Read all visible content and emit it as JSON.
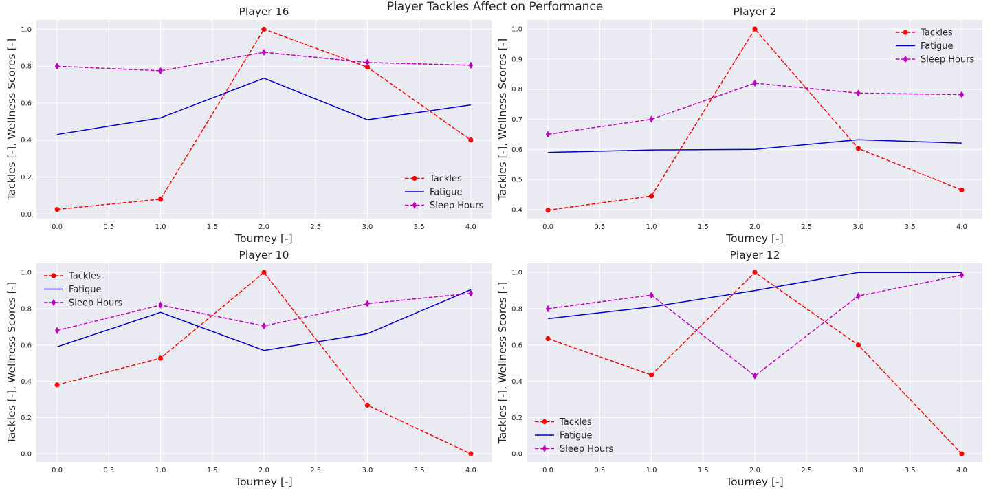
{
  "figure": {
    "title": "Player Tackles Affect on Performance",
    "style": {
      "axes_facecolor": "#eaeaf2",
      "grid_color": "#ffffff"
    }
  },
  "chart_data": [
    {
      "type": "line",
      "title": "Player 16",
      "xlabel": "Tourney [-]",
      "ylabel": "Tackles [-], Wellness Scores [-]",
      "xlim": [
        -0.2,
        4.2
      ],
      "ylim": [
        -0.025,
        1.05
      ],
      "xticks": [
        "0.0",
        "0.5",
        "1.0",
        "1.5",
        "2.0",
        "2.5",
        "3.0",
        "3.5",
        "4.0"
      ],
      "yticks": [
        "0.0",
        "0.2",
        "0.4",
        "0.6",
        "0.8",
        "1.0"
      ],
      "grid": true,
      "legend_position": "lower-right",
      "x": [
        0,
        1,
        2,
        3,
        4
      ],
      "series": [
        {
          "name": "Tackles",
          "values": [
            0.025,
            0.08,
            1.0,
            0.795,
            0.4
          ],
          "color": "#ff0000",
          "linestyle": "dashed",
          "marker": "circle"
        },
        {
          "name": "Fatigue",
          "values": [
            0.43,
            0.52,
            0.735,
            0.51,
            0.59
          ],
          "color": "#0000cc",
          "linestyle": "solid",
          "marker": "none"
        },
        {
          "name": "Sleep Hours",
          "values": [
            0.8,
            0.775,
            0.875,
            0.82,
            0.805
          ],
          "color": "#c000c0",
          "linestyle": "dashed",
          "marker": "diamond"
        }
      ]
    },
    {
      "type": "line",
      "title": "Player 2",
      "xlabel": "Tourney [-]",
      "ylabel": "Tackles [-], Wellness Scores [-]",
      "xlim": [
        -0.2,
        4.2
      ],
      "ylim": [
        0.37,
        1.03
      ],
      "xticks": [
        "0.0",
        "0.5",
        "1.0",
        "1.5",
        "2.0",
        "2.5",
        "3.0",
        "3.5",
        "4.0"
      ],
      "yticks": [
        "0.4",
        "0.5",
        "0.6",
        "0.7",
        "0.8",
        "0.9",
        "1.0"
      ],
      "grid": true,
      "legend_position": "upper-right",
      "x": [
        0,
        1,
        2,
        3,
        4
      ],
      "series": [
        {
          "name": "Tackles",
          "values": [
            0.398,
            0.445,
            1.0,
            0.603,
            0.465
          ],
          "color": "#ff0000",
          "linestyle": "dashed",
          "marker": "circle"
        },
        {
          "name": "Fatigue",
          "values": [
            0.59,
            0.598,
            0.6,
            0.632,
            0.621
          ],
          "color": "#0000cc",
          "linestyle": "solid",
          "marker": "none"
        },
        {
          "name": "Sleep Hours",
          "values": [
            0.65,
            0.7,
            0.82,
            0.787,
            0.782
          ],
          "color": "#c000c0",
          "linestyle": "dashed",
          "marker": "diamond"
        }
      ]
    },
    {
      "type": "line",
      "title": "Player 10",
      "xlabel": "Tourney [-]",
      "ylabel": "Tackles [-], Wellness Scores [-]",
      "xlim": [
        -0.2,
        4.2
      ],
      "ylim": [
        -0.045,
        1.05
      ],
      "xticks": [
        "0.0",
        "0.5",
        "1.0",
        "1.5",
        "2.0",
        "2.5",
        "3.0",
        "3.5",
        "4.0"
      ],
      "yticks": [
        "0.0",
        "0.2",
        "0.4",
        "0.6",
        "0.8",
        "1.0"
      ],
      "grid": true,
      "legend_position": "upper-left",
      "x": [
        0,
        1,
        2,
        3,
        4
      ],
      "series": [
        {
          "name": "Tackles",
          "values": [
            0.38,
            0.527,
            1.0,
            0.268,
            0.0
          ],
          "color": "#ff0000",
          "linestyle": "dashed",
          "marker": "circle"
        },
        {
          "name": "Fatigue",
          "values": [
            0.59,
            0.78,
            0.57,
            0.662,
            0.905
          ],
          "color": "#0000cc",
          "linestyle": "solid",
          "marker": "none"
        },
        {
          "name": "Sleep Hours",
          "values": [
            0.68,
            0.82,
            0.705,
            0.828,
            0.885
          ],
          "color": "#c000c0",
          "linestyle": "dashed",
          "marker": "diamond"
        }
      ]
    },
    {
      "type": "line",
      "title": "Player 12",
      "xlabel": "Tourney [-]",
      "ylabel": "Tackles [-], Wellness Scores [-]",
      "xlim": [
        -0.2,
        4.2
      ],
      "ylim": [
        -0.045,
        1.05
      ],
      "xticks": [
        "0.0",
        "0.5",
        "1.0",
        "1.5",
        "2.0",
        "2.5",
        "3.0",
        "3.5",
        "4.0"
      ],
      "yticks": [
        "0.0",
        "0.2",
        "0.4",
        "0.6",
        "0.8",
        "1.0"
      ],
      "grid": true,
      "legend_position": "lower-left",
      "x": [
        0,
        1,
        2,
        3,
        4
      ],
      "series": [
        {
          "name": "Tackles",
          "values": [
            0.635,
            0.435,
            1.0,
            0.6,
            0.0
          ],
          "color": "#ff0000",
          "linestyle": "dashed",
          "marker": "circle"
        },
        {
          "name": "Fatigue",
          "values": [
            0.745,
            0.81,
            0.9,
            1.0,
            1.0
          ],
          "color": "#0000cc",
          "linestyle": "solid",
          "marker": "none"
        },
        {
          "name": "Sleep Hours",
          "values": [
            0.8,
            0.875,
            0.43,
            0.87,
            0.985
          ],
          "color": "#c000c0",
          "linestyle": "dashed",
          "marker": "diamond"
        }
      ]
    }
  ]
}
